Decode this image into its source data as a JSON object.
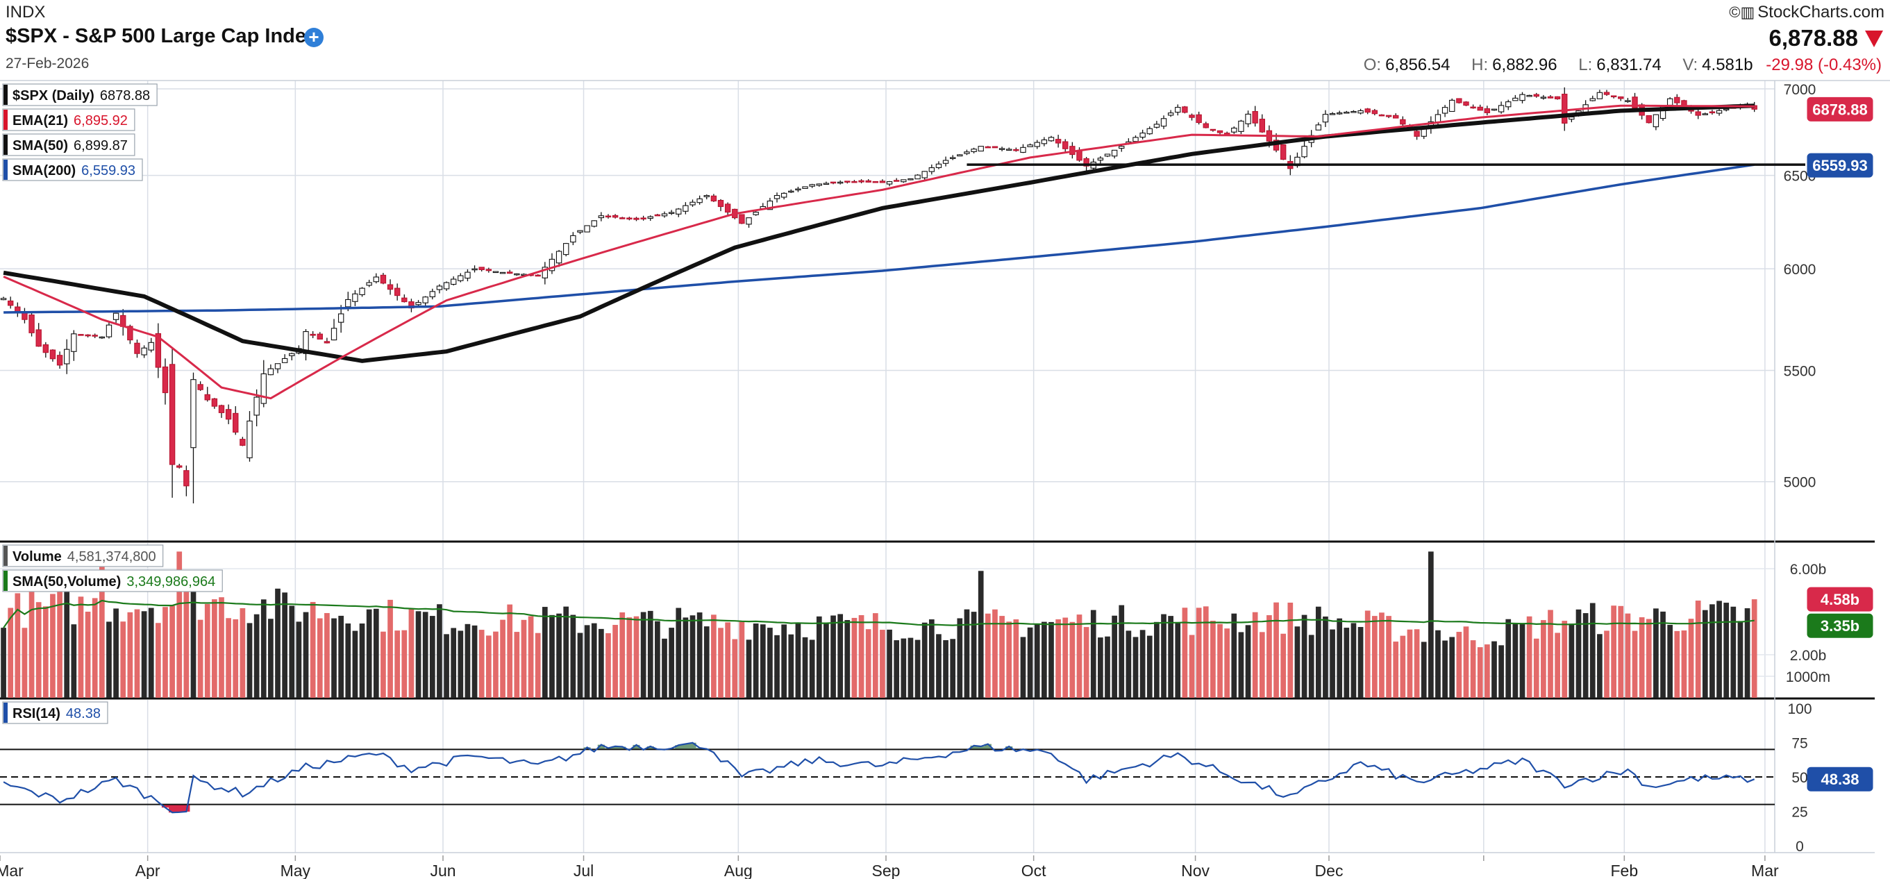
{
  "header": {
    "exchange": "INDX",
    "title": "$SPX - S&P 500 Large Cap Index",
    "date": "27-Feb-2026",
    "brand": "StockCharts.com",
    "last": "6,878.88",
    "open_label": "O:",
    "open": "6,856.54",
    "high_label": "H:",
    "high": "6,882.96",
    "low_label": "L:",
    "low": "6,831.74",
    "volume_label": "V:",
    "volume": "4.581b",
    "change": "-29.98 (-0.43%)"
  },
  "legend": {
    "price": [
      {
        "label": "$SPX (Daily)",
        "value": "6878.88",
        "color": "#111111"
      },
      {
        "label": "EMA(21)",
        "value": "6,895.92",
        "color": "#d8152c"
      },
      {
        "label": "SMA(50)",
        "value": "6,899.87",
        "color": "#111111"
      },
      {
        "label": "SMA(200)",
        "value": "6,559.93",
        "color": "#1f4fa8"
      }
    ],
    "volume": [
      {
        "label": "Volume",
        "value": "4,581,374,800",
        "color": "#555555"
      },
      {
        "label": "SMA(50,Volume)",
        "value": "3,349,986,964",
        "color": "#1b7a1b"
      }
    ],
    "rsi": [
      {
        "label": "RSI(14)",
        "value": "48.38",
        "color": "#1f4fa8"
      }
    ]
  },
  "chart_data": {
    "type": "line",
    "title": "$SPX - S&P 500 Large Cap Index",
    "date_range": [
      "2025-03-03",
      "2026-02-27"
    ],
    "x_ticks": [
      "Mar",
      "Apr",
      "May",
      "Jun",
      "Jul",
      "Aug",
      "Sep",
      "Oct",
      "Nov",
      "Dec",
      "Feb",
      "Mar"
    ],
    "price_panel": {
      "scale": "log",
      "y_ticks": [
        5000,
        5500,
        6000,
        6500,
        7000
      ],
      "ylim": [
        4750,
        7050
      ],
      "horizontal_line": 6559.93,
      "price_anchors": [
        {
          "date": "2025-03-03",
          "close": 5850
        },
        {
          "date": "2025-03-06",
          "close": 5745
        },
        {
          "date": "2025-03-10",
          "close": 5615
        },
        {
          "date": "2025-03-13",
          "close": 5525
        },
        {
          "date": "2025-03-17",
          "close": 5675
        },
        {
          "date": "2025-03-21",
          "close": 5660
        },
        {
          "date": "2025-03-25",
          "close": 5776
        },
        {
          "date": "2025-03-28",
          "close": 5580
        },
        {
          "date": "2025-04-01",
          "close": 5633
        },
        {
          "date": "2025-04-03",
          "close": 5396
        },
        {
          "date": "2025-04-04",
          "close": 5074
        },
        {
          "date": "2025-04-07",
          "close": 5062
        },
        {
          "date": "2025-04-08",
          "close": 4982
        },
        {
          "date": "2025-04-09",
          "close": 5457
        },
        {
          "date": "2025-04-11",
          "close": 5363
        },
        {
          "date": "2025-04-16",
          "close": 5275
        },
        {
          "date": "2025-04-21",
          "close": 5158
        },
        {
          "date": "2025-04-24",
          "close": 5484
        },
        {
          "date": "2025-05-01",
          "close": 5604
        },
        {
          "date": "2025-05-02",
          "close": 5686
        },
        {
          "date": "2025-05-07",
          "close": 5631
        },
        {
          "date": "2025-05-12",
          "close": 5844
        },
        {
          "date": "2025-05-16",
          "close": 5958
        },
        {
          "date": "2025-05-23",
          "close": 5802
        },
        {
          "date": "2025-05-30",
          "close": 5912
        },
        {
          "date": "2025-06-06",
          "close": 6000
        },
        {
          "date": "2025-06-13",
          "close": 5977
        },
        {
          "date": "2025-06-20",
          "close": 5967
        },
        {
          "date": "2025-06-27",
          "close": 6173
        },
        {
          "date": "2025-07-03",
          "close": 6279
        },
        {
          "date": "2025-07-11",
          "close": 6259
        },
        {
          "date": "2025-07-18",
          "close": 6297
        },
        {
          "date": "2025-07-25",
          "close": 6389
        },
        {
          "date": "2025-08-01",
          "close": 6238
        },
        {
          "date": "2025-08-08",
          "close": 6389
        },
        {
          "date": "2025-08-15",
          "close": 6449
        },
        {
          "date": "2025-08-22",
          "close": 6466
        },
        {
          "date": "2025-08-29",
          "close": 6460
        },
        {
          "date": "2025-09-05",
          "close": 6481
        },
        {
          "date": "2025-09-12",
          "close": 6584
        },
        {
          "date": "2025-09-19",
          "close": 6664
        },
        {
          "date": "2025-09-26",
          "close": 6643
        },
        {
          "date": "2025-10-03",
          "close": 6715
        },
        {
          "date": "2025-10-10",
          "close": 6552
        },
        {
          "date": "2025-10-17",
          "close": 6664
        },
        {
          "date": "2025-10-24",
          "close": 6791
        },
        {
          "date": "2025-10-29",
          "close": 6890
        },
        {
          "date": "2025-11-04",
          "close": 6771
        },
        {
          "date": "2025-11-07",
          "close": 6728
        },
        {
          "date": "2025-11-12",
          "close": 6850
        },
        {
          "date": "2025-11-20",
          "close": 6538
        },
        {
          "date": "2025-11-21",
          "close": 6602
        },
        {
          "date": "2025-11-28",
          "close": 6849
        },
        {
          "date": "2025-12-05",
          "close": 6870
        },
        {
          "date": "2025-12-12",
          "close": 6827
        },
        {
          "date": "2025-12-17",
          "close": 6721
        },
        {
          "date": "2025-12-24",
          "close": 6932
        },
        {
          "date": "2026-01-02",
          "close": 6858
        },
        {
          "date": "2026-01-09",
          "close": 6966
        },
        {
          "date": "2026-01-16",
          "close": 6940
        },
        {
          "date": "2026-01-20",
          "close": 6797
        },
        {
          "date": "2026-01-27",
          "close": 6978
        },
        {
          "date": "2026-02-02",
          "close": 6930
        },
        {
          "date": "2026-02-05",
          "close": 6800
        },
        {
          "date": "2026-02-10",
          "close": 6941
        },
        {
          "date": "2026-02-17",
          "close": 6843
        },
        {
          "date": "2026-02-24",
          "close": 6890
        },
        {
          "date": "2026-02-26",
          "close": 6908.86
        },
        {
          "date": "2026-02-27",
          "close": 6878.88
        }
      ],
      "ema21": [
        {
          "date": "2025-03-03",
          "value": 5960
        },
        {
          "date": "2025-03-21",
          "value": 5745
        },
        {
          "date": "2025-04-02",
          "value": 5660
        },
        {
          "date": "2025-04-15",
          "value": 5420
        },
        {
          "date": "2025-04-25",
          "value": 5370
        },
        {
          "date": "2025-05-09",
          "value": 5560
        },
        {
          "date": "2025-06-02",
          "value": 5840
        },
        {
          "date": "2025-06-30",
          "value": 6050
        },
        {
          "date": "2025-07-31",
          "value": 6290
        },
        {
          "date": "2025-08-29",
          "value": 6420
        },
        {
          "date": "2025-09-30",
          "value": 6600
        },
        {
          "date": "2025-10-31",
          "value": 6730
        },
        {
          "date": "2025-11-26",
          "value": 6720
        },
        {
          "date": "2025-12-31",
          "value": 6830
        },
        {
          "date": "2026-01-30",
          "value": 6900
        },
        {
          "date": "2026-02-27",
          "value": 6895.92
        }
      ],
      "sma50": [
        {
          "date": "2025-03-03",
          "value": 5980
        },
        {
          "date": "2025-03-31",
          "value": 5860
        },
        {
          "date": "2025-04-21",
          "value": 5640
        },
        {
          "date": "2025-05-14",
          "value": 5545
        },
        {
          "date": "2025-06-02",
          "value": 5590
        },
        {
          "date": "2025-06-30",
          "value": 5760
        },
        {
          "date": "2025-07-31",
          "value": 6110
        },
        {
          "date": "2025-08-29",
          "value": 6320
        },
        {
          "date": "2025-09-30",
          "value": 6460
        },
        {
          "date": "2025-10-31",
          "value": 6620
        },
        {
          "date": "2025-11-28",
          "value": 6720
        },
        {
          "date": "2025-12-31",
          "value": 6800
        },
        {
          "date": "2026-01-30",
          "value": 6870
        },
        {
          "date": "2026-02-27",
          "value": 6899.87
        }
      ],
      "sma200": [
        {
          "date": "2025-03-03",
          "value": 5780
        },
        {
          "date": "2025-04-15",
          "value": 5790
        },
        {
          "date": "2025-05-30",
          "value": 5810
        },
        {
          "date": "2025-06-30",
          "value": 5870
        },
        {
          "date": "2025-07-31",
          "value": 5935
        },
        {
          "date": "2025-08-29",
          "value": 5990
        },
        {
          "date": "2025-09-30",
          "value": 6060
        },
        {
          "date": "2025-10-31",
          "value": 6140
        },
        {
          "date": "2025-11-28",
          "value": 6220
        },
        {
          "date": "2025-12-31",
          "value": 6320
        },
        {
          "date": "2026-01-30",
          "value": 6450
        },
        {
          "date": "2026-02-27",
          "value": 6559.93
        }
      ],
      "price_label": "6878.88",
      "sma200_label": "6559.93"
    },
    "volume_panel": {
      "y_ticks": [
        "6.00b",
        "2.00b",
        "1000m"
      ],
      "y_tick_values": [
        6000,
        2000,
        1000
      ],
      "ylim": [
        0,
        7200
      ],
      "units": "millions",
      "last_volume": 4581,
      "sma50_volume": 3350,
      "volume_label": "4.58b",
      "sma_label": "3.35b",
      "spikes": [
        {
          "date": "2025-03-21",
          "value": 7100
        },
        {
          "date": "2025-04-07",
          "value": 6800
        },
        {
          "date": "2025-09-19",
          "value": 5900
        },
        {
          "date": "2025-12-19",
          "value": 6800
        }
      ]
    },
    "rsi_panel": {
      "y_ticks": [
        0,
        25,
        50,
        75,
        100
      ],
      "ylim": [
        0,
        100
      ],
      "overbought": 70,
      "oversold": 30,
      "midline": 50,
      "last": 48.38,
      "label": "48.38",
      "rsi_anchors": [
        {
          "date": "2025-03-03",
          "value": 45
        },
        {
          "date": "2025-03-13",
          "value": 33
        },
        {
          "date": "2025-03-25",
          "value": 48
        },
        {
          "date": "2025-04-04",
          "value": 27
        },
        {
          "date": "2025-04-08",
          "value": 25
        },
        {
          "date": "2025-04-09",
          "value": 48
        },
        {
          "date": "2025-04-21",
          "value": 38
        },
        {
          "date": "2025-05-02",
          "value": 57
        },
        {
          "date": "2025-05-16",
          "value": 67
        },
        {
          "date": "2025-05-23",
          "value": 56
        },
        {
          "date": "2025-06-06",
          "value": 65
        },
        {
          "date": "2025-06-20",
          "value": 58
        },
        {
          "date": "2025-07-03",
          "value": 72
        },
        {
          "date": "2025-07-25",
          "value": 73
        },
        {
          "date": "2025-08-01",
          "value": 50
        },
        {
          "date": "2025-08-15",
          "value": 62
        },
        {
          "date": "2025-08-29",
          "value": 58
        },
        {
          "date": "2025-09-19",
          "value": 72
        },
        {
          "date": "2025-10-03",
          "value": 68
        },
        {
          "date": "2025-10-10",
          "value": 48
        },
        {
          "date": "2025-10-29",
          "value": 66
        },
        {
          "date": "2025-11-07",
          "value": 52
        },
        {
          "date": "2025-11-20",
          "value": 35
        },
        {
          "date": "2025-12-05",
          "value": 60
        },
        {
          "date": "2025-12-17",
          "value": 46
        },
        {
          "date": "2026-01-09",
          "value": 62
        },
        {
          "date": "2026-01-20",
          "value": 45
        },
        {
          "date": "2026-02-02",
          "value": 55
        },
        {
          "date": "2026-02-05",
          "value": 43
        },
        {
          "date": "2026-02-17",
          "value": 49
        },
        {
          "date": "2026-02-27",
          "value": 48.38
        }
      ]
    }
  }
}
